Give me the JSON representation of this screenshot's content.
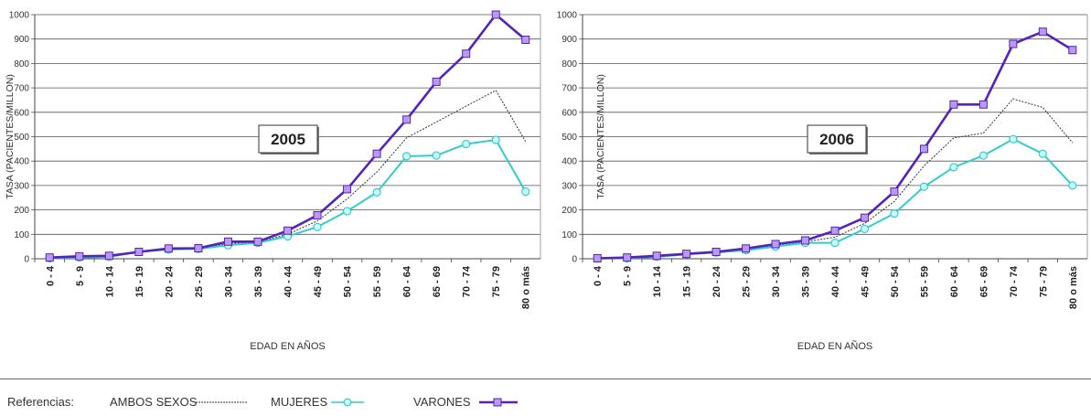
{
  "chart_data": [
    {
      "type": "line",
      "title": "2005",
      "xlabel": "EDAD EN AÑOS",
      "ylabel": "TASA (PACIENTES/MILLON)",
      "ylim": [
        0,
        1000
      ],
      "yticks": [
        "0",
        "100",
        "200",
        "300",
        "400",
        "500",
        "600",
        "700",
        "800",
        "900",
        "1000"
      ],
      "grid": "horizontal",
      "categories": [
        "0 - 4",
        "5 - 9",
        "10 - 14",
        "15 - 19",
        "20 - 24",
        "25 - 29",
        "30 - 34",
        "35 - 39",
        "40 - 44",
        "45 - 49",
        "50 - 54",
        "55 - 59",
        "60 - 64",
        "65 - 69",
        "70 - 74",
        "75 - 79",
        "80 o más"
      ],
      "series": [
        {
          "name": "AMBOS SEXOS",
          "values": [
            3,
            8,
            10,
            28,
            40,
            42,
            62,
            68,
            100,
            155,
            245,
            355,
            495,
            560,
            625,
            690,
            480
          ]
        },
        {
          "name": "MUJERES",
          "values": [
            2,
            5,
            8,
            28,
            38,
            40,
            55,
            65,
            92,
            130,
            195,
            272,
            420,
            423,
            470,
            487,
            275
          ]
        },
        {
          "name": "VARONES",
          "values": [
            5,
            10,
            12,
            28,
            42,
            43,
            70,
            70,
            115,
            178,
            285,
            430,
            570,
            725,
            840,
            1000,
            897
          ]
        }
      ]
    },
    {
      "type": "line",
      "title": "2006",
      "xlabel": "EDAD EN AÑOS",
      "ylabel": "TASA (PACIENTES/MILLON)",
      "ylim": [
        0,
        1000
      ],
      "yticks": [
        "0",
        "100",
        "200",
        "300",
        "400",
        "500",
        "600",
        "700",
        "800",
        "900",
        "1000"
      ],
      "grid": "horizontal",
      "categories": [
        "0 - 4",
        "5 - 9",
        "10 - 14",
        "15 - 19",
        "20 - 24",
        "25 - 29",
        "30 - 34",
        "35 - 39",
        "40 - 44",
        "45 - 49",
        "50 - 54",
        "55 - 59",
        "60 - 64",
        "65 - 69",
        "70 - 74",
        "75 - 79",
        "80 o más"
      ],
      "series": [
        {
          "name": "AMBOS SEXOS",
          "values": [
            2,
            3,
            8,
            20,
            25,
            38,
            55,
            70,
            88,
            145,
            235,
            380,
            495,
            515,
            655,
            620,
            475
          ]
        },
        {
          "name": "MUJERES",
          "values": [
            1,
            2,
            8,
            18,
            25,
            35,
            50,
            65,
            65,
            122,
            185,
            295,
            375,
            423,
            490,
            430,
            300
          ]
        },
        {
          "name": "VARONES",
          "values": [
            2,
            5,
            12,
            20,
            28,
            42,
            60,
            75,
            115,
            168,
            275,
            450,
            632,
            632,
            880,
            930,
            855
          ]
        }
      ]
    }
  ],
  "legend": {
    "title": "Referencias:",
    "items": [
      {
        "name": "AMBOS SEXOS"
      },
      {
        "name": "MUJERES"
      },
      {
        "name": "VARONES"
      }
    ]
  },
  "colors": {
    "ambos": "#333333",
    "mujeres": "#33cccc",
    "mujeres_fill": "#ccffff",
    "varones": "#5522bb",
    "varones_fill": "#bb99ee",
    "grid": "#555555"
  }
}
